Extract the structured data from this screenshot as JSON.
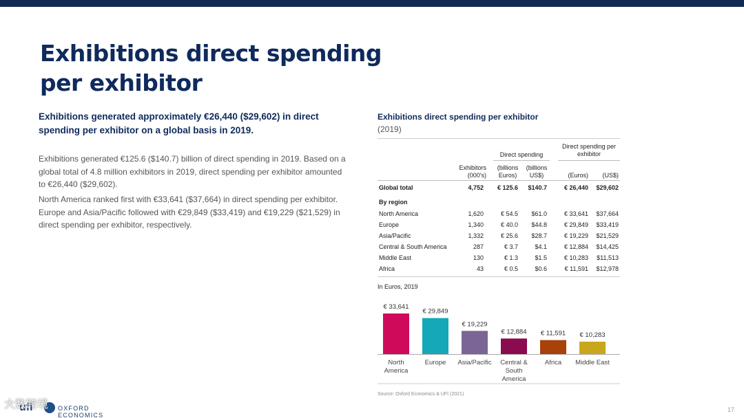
{
  "title": "Exhibitions direct spending per exhibitor",
  "lead": "Exhibitions generated approximately €26,440 ($29,602) in direct spending per exhibitor on a global basis in 2019.",
  "paragraph1": "Exhibitions generated €125.6 ($140.7) billion of direct spending in 2019. Based on a global total of 4.8 million exhibitors in 2019, direct spending per exhibitor amounted to €26,440 ($29,602).",
  "paragraph2": "North America ranked first with €33,641 ($37,664) in direct spending per exhibitor. Europe and Asia/Pacific followed with €29,849 ($33,419) and €19,229 ($21,529) in direct spending per exhibitor, respectively.",
  "exhibit": {
    "title": "Exhibitions direct spending per exhibitor",
    "year": "(2019)"
  },
  "table": {
    "group_direct": "Direct spending",
    "group_per_exhibitor": "Direct spending per exhibitor",
    "col_exhibitors": "Exhibitors (000's)",
    "col_billions_euros": "(billions Euros)",
    "col_billions_usd": "(billions US$)",
    "col_euros": "(Euros)",
    "col_usd": "(US$)",
    "global": {
      "label": "Global total",
      "exhibitors": "4,752",
      "b_eur": "€ 125.6",
      "b_usd": "$140.7",
      "eur": "€ 26,440",
      "usd": "$29,602"
    },
    "by_region_label": "By region",
    "rows": [
      {
        "label": "North America",
        "exhibitors": "1,620",
        "b_eur": "€ 54.5",
        "b_usd": "$61.0",
        "eur": "€ 33,641",
        "usd": "$37,664"
      },
      {
        "label": "Europe",
        "exhibitors": "1,340",
        "b_eur": "€ 40.0",
        "b_usd": "$44.8",
        "eur": "€ 29,849",
        "usd": "$33,419"
      },
      {
        "label": "Asia/Pacific",
        "exhibitors": "1,332",
        "b_eur": "€ 25.6",
        "b_usd": "$28.7",
        "eur": "€ 19,229",
        "usd": "$21,529"
      },
      {
        "label": "Central & South America",
        "exhibitors": "287",
        "b_eur": "€ 3.7",
        "b_usd": "$4.1",
        "eur": "€ 12,884",
        "usd": "$14,425"
      },
      {
        "label": "Middle East",
        "exhibitors": "130",
        "b_eur": "€ 1.3",
        "b_usd": "$1.5",
        "eur": "€ 10,283",
        "usd": "$11,513"
      },
      {
        "label": "Africa",
        "exhibitors": "43",
        "b_eur": "€ 0.5",
        "b_usd": "$0.6",
        "eur": "€ 11,591",
        "usd": "$12,978"
      }
    ]
  },
  "chart_label": "In Euros, 2019",
  "chart_data": {
    "type": "bar",
    "title": "",
    "xlabel": "",
    "ylabel": "",
    "categories": [
      "North America",
      "Europe",
      "Asia/Pacific",
      "Central & South America",
      "Africa",
      "Middle East"
    ],
    "category_lines": [
      [
        "North",
        "America"
      ],
      [
        "Europe"
      ],
      [
        "Asia/Pacific"
      ],
      [
        "Central &",
        "South",
        "America"
      ],
      [
        "Africa"
      ],
      [
        "Middle East"
      ]
    ],
    "values": [
      33641,
      29849,
      19229,
      12884,
      11591,
      10283
    ],
    "value_labels": [
      "€ 33,641",
      "€ 29,849",
      "€ 19,229",
      "€ 12,884",
      "€ 11,591",
      "€ 10,283"
    ],
    "colors": [
      "#cf0a5a",
      "#14a8b8",
      "#7b6596",
      "#8a0b4e",
      "#a8410a",
      "#c9a61b"
    ],
    "ylim": [
      0,
      33641
    ],
    "grid": false
  },
  "source": "Source: Oxford Economics & UFI (2021)",
  "page_number": "17",
  "footer": {
    "ufi": "ufi",
    "oe": "OXFORD ECONOMICS",
    "watermark": "大数跨境"
  }
}
